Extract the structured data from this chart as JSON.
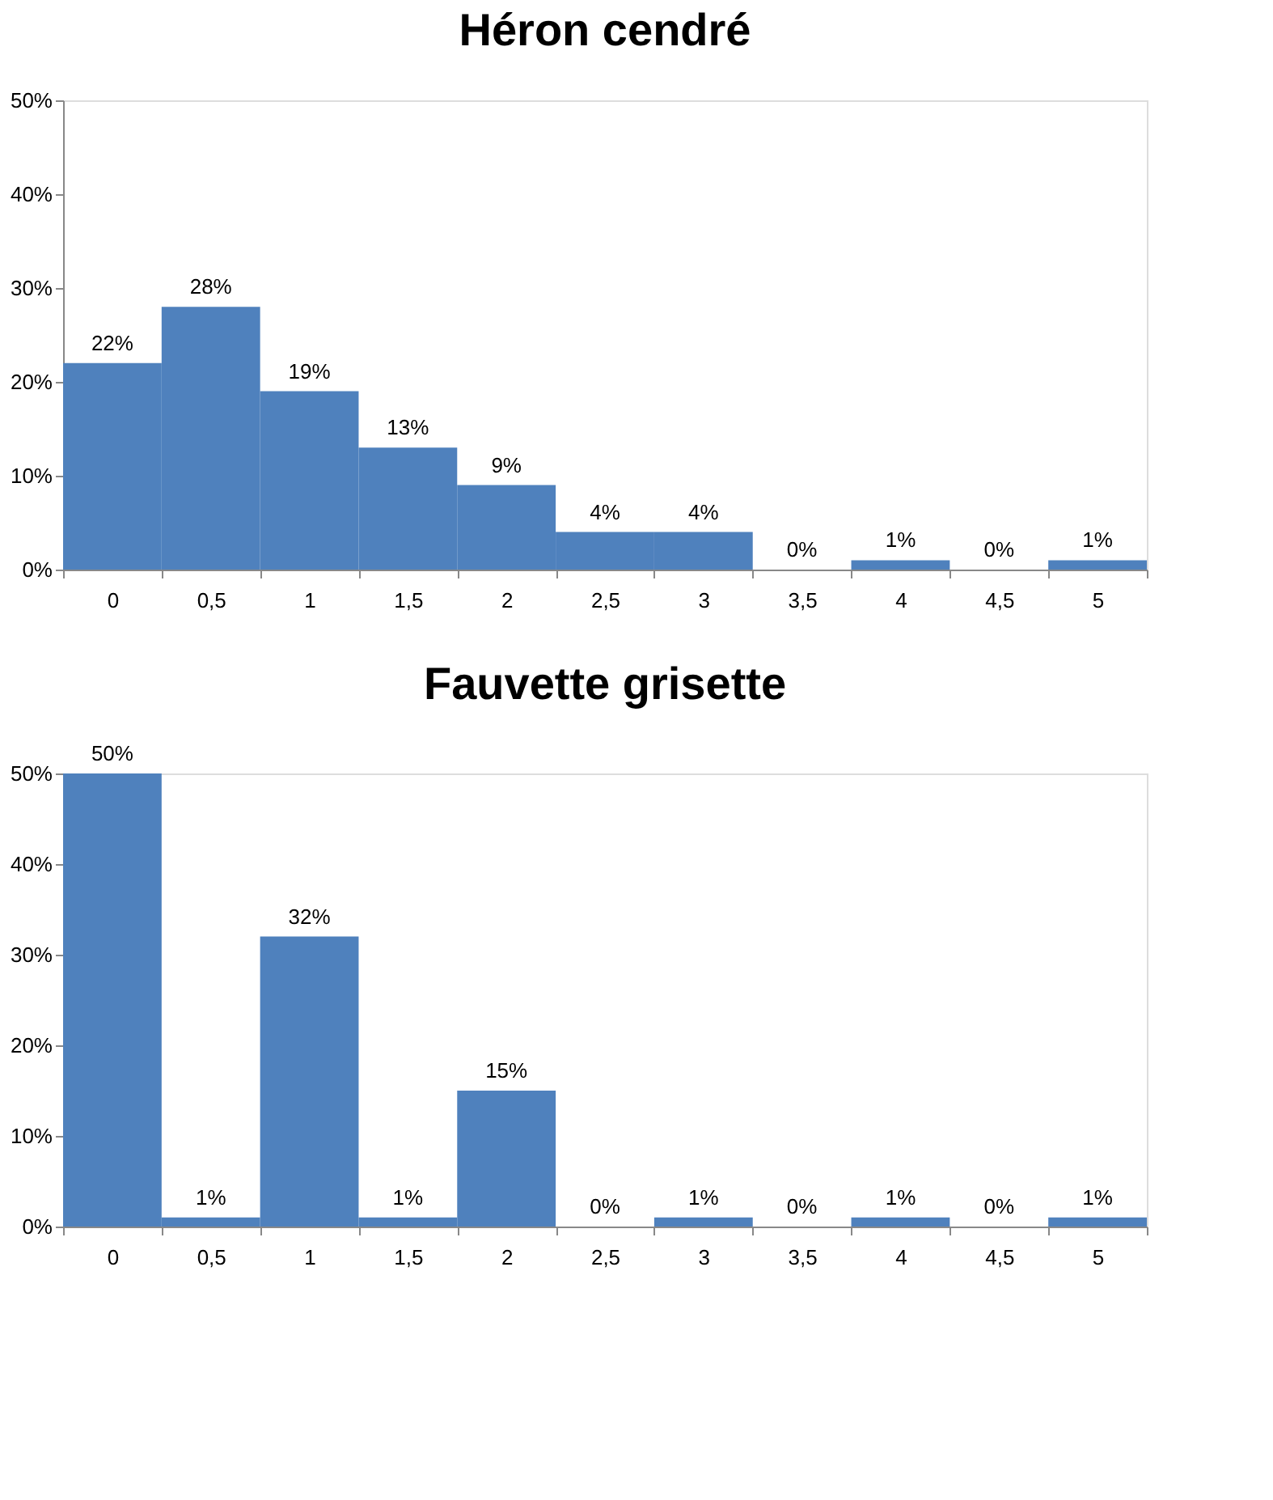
{
  "chart_data": [
    {
      "type": "bar",
      "title": "Héron cendré",
      "categories": [
        "0",
        "0,5",
        "1",
        "1,5",
        "2",
        "2,5",
        "3",
        "3,5",
        "4",
        "4,5",
        "5"
      ],
      "series": [
        {
          "color": "#4f81bd",
          "values": [
            22,
            28,
            19,
            13,
            9,
            4,
            4,
            0,
            1,
            0,
            1
          ]
        }
      ],
      "value_labels": [
        "22%",
        "28%",
        "19%",
        "13%",
        "9%",
        "4%",
        "4%",
        "0%",
        "1%",
        "0%",
        "1%"
      ],
      "ylim": [
        0,
        50
      ],
      "yticks": [
        {
          "value": 0,
          "label": "0%"
        },
        {
          "value": 10,
          "label": "10%"
        },
        {
          "value": 20,
          "label": "20%"
        },
        {
          "value": 30,
          "label": "30%"
        },
        {
          "value": 40,
          "label": "40%"
        },
        {
          "value": 50,
          "label": "50%"
        }
      ],
      "grid": false
    },
    {
      "type": "bar",
      "title": "Fauvette grisette",
      "categories": [
        "0",
        "0,5",
        "1",
        "1,5",
        "2",
        "2,5",
        "3",
        "3,5",
        "4",
        "4,5",
        "5"
      ],
      "series": [
        {
          "color": "#4f81bd",
          "values": [
            50,
            1,
            32,
            1,
            15,
            0,
            1,
            0,
            1,
            0,
            1
          ]
        }
      ],
      "value_labels": [
        "50%",
        "1%",
        "32%",
        "1%",
        "15%",
        "0%",
        "1%",
        "0%",
        "1%",
        "0%",
        "1%"
      ],
      "ylim": [
        0,
        50
      ],
      "yticks": [
        {
          "value": 0,
          "label": "0%"
        },
        {
          "value": 10,
          "label": "10%"
        },
        {
          "value": 20,
          "label": "20%"
        },
        {
          "value": 30,
          "label": "30%"
        },
        {
          "value": 40,
          "label": "40%"
        },
        {
          "value": 50,
          "label": "50%"
        }
      ],
      "grid": false
    }
  ]
}
